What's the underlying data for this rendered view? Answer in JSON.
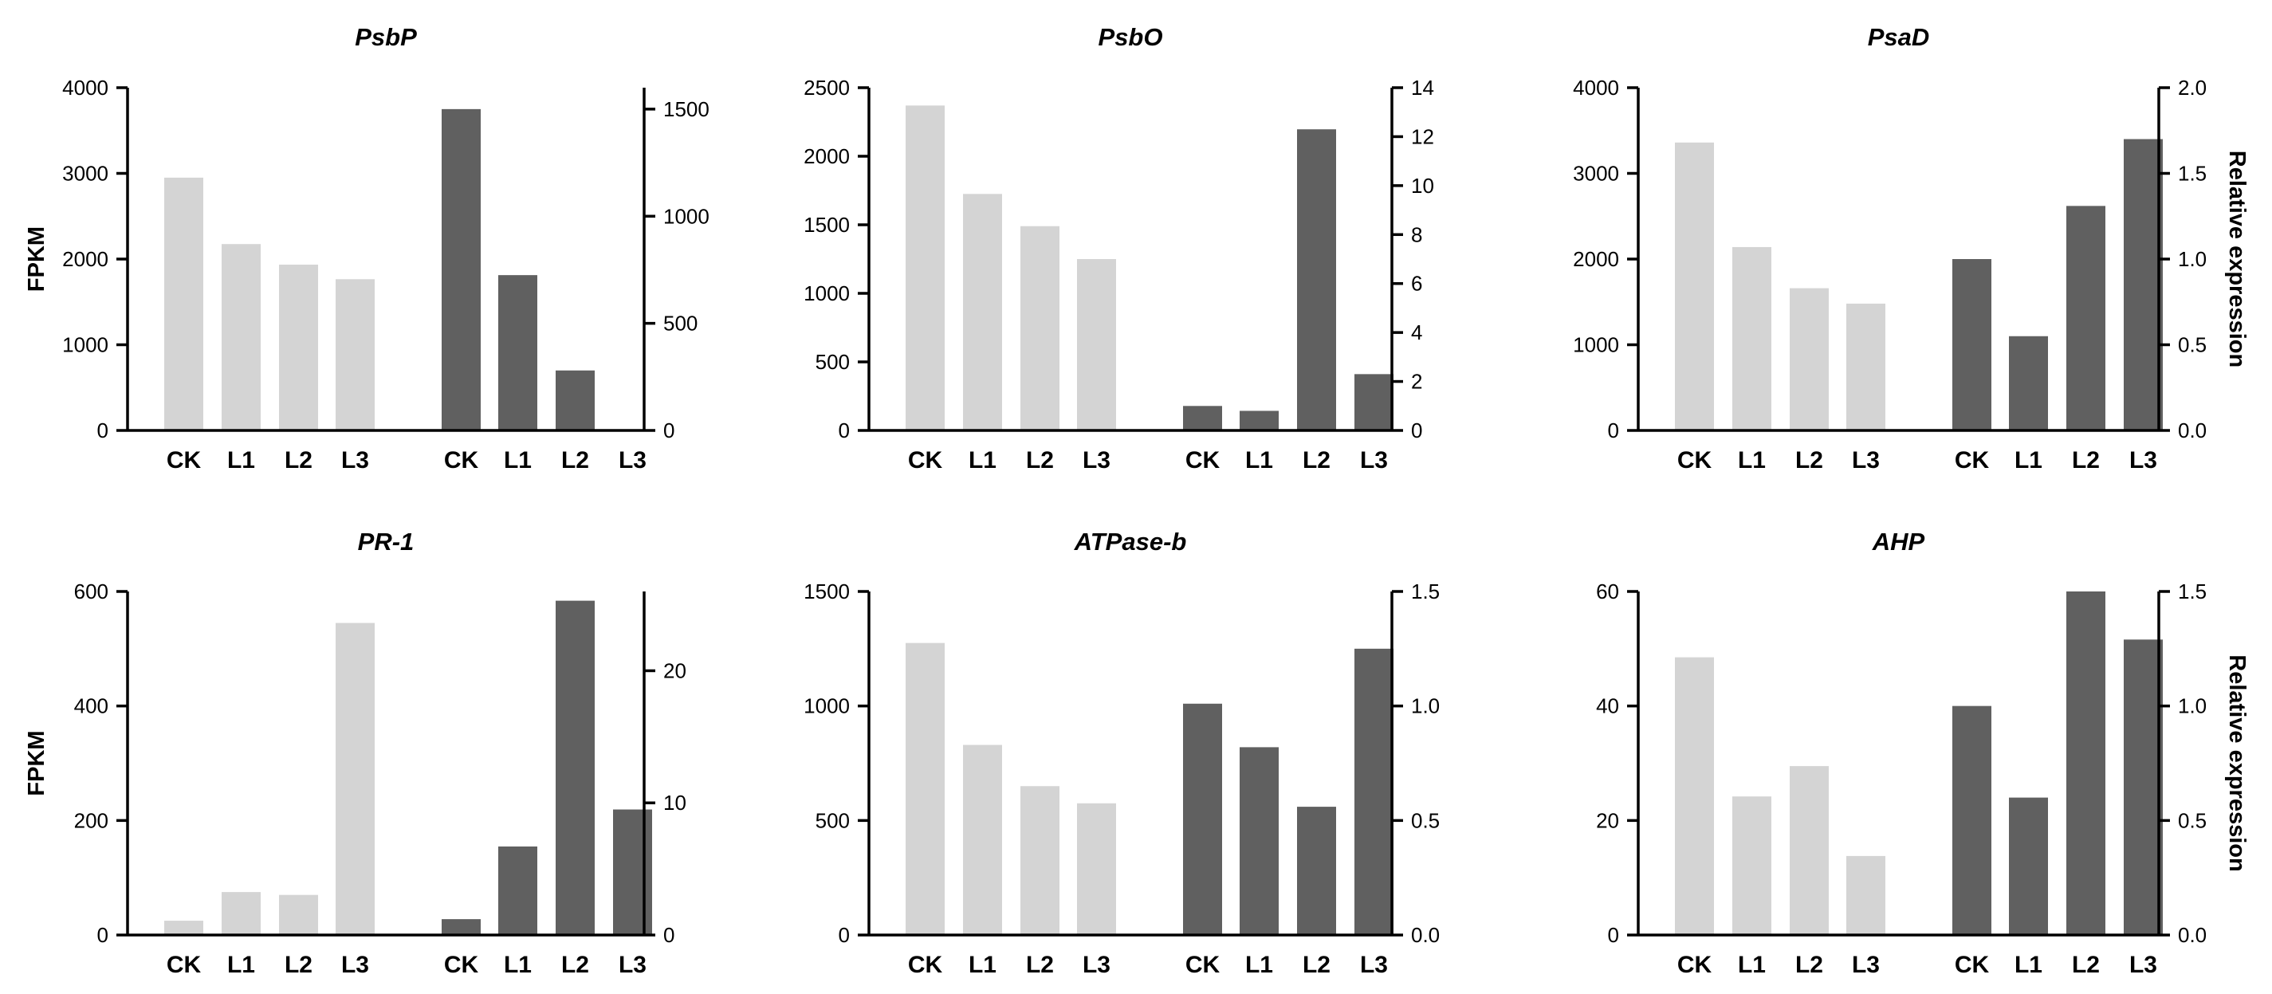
{
  "colors": {
    "fpkm_bar": "#d4d4d4",
    "rel_bar": "#606060",
    "axis": "#000000"
  },
  "chart_data": [
    {
      "type": "bar",
      "title": "PsbP",
      "categories": [
        "CK",
        "L1",
        "L2",
        "L3"
      ],
      "ylabel": "FPKM",
      "y2label": "",
      "ylim": [
        0,
        4000
      ],
      "yticks": [
        0,
        1000,
        2000,
        3000,
        4000
      ],
      "yticklabels": [
        "0",
        "1000",
        "2000",
        "3000",
        "4000"
      ],
      "y2lim": [
        0,
        1600
      ],
      "y2ticks": [
        0,
        500,
        1000,
        1500
      ],
      "y2ticklabels": [
        "0",
        "500",
        "1000",
        "1500"
      ],
      "series": [
        {
          "name": "FPKM",
          "axis": "left",
          "values": [
            2950,
            2175,
            1935,
            1765
          ]
        },
        {
          "name": "Relative expression",
          "axis": "right",
          "values": [
            1500,
            725,
            280,
            0
          ]
        }
      ]
    },
    {
      "type": "bar",
      "title": "PsbO",
      "categories": [
        "CK",
        "L1",
        "L2",
        "L3"
      ],
      "ylabel": "",
      "y2label": "",
      "ylim": [
        0,
        2500
      ],
      "yticks": [
        0,
        500,
        1000,
        1500,
        2000,
        2500
      ],
      "yticklabels": [
        "0",
        "500",
        "1000",
        "1500",
        "2000",
        "2500"
      ],
      "y2lim": [
        0,
        14
      ],
      "y2ticks": [
        0,
        2,
        4,
        6,
        8,
        10,
        12,
        14
      ],
      "y2ticklabels": [
        "0",
        "2",
        "4",
        "6",
        "8",
        "10",
        "12",
        "14"
      ],
      "series": [
        {
          "name": "FPKM",
          "axis": "left",
          "values": [
            2370,
            1725,
            1490,
            1250
          ]
        },
        {
          "name": "Relative expression",
          "axis": "right",
          "values": [
            1.0,
            0.8,
            12.3,
            2.3
          ]
        }
      ]
    },
    {
      "type": "bar",
      "title": "PsaD",
      "categories": [
        "CK",
        "L1",
        "L2",
        "L3"
      ],
      "ylabel": "",
      "y2label": "Relative expression",
      "ylim": [
        0,
        4000
      ],
      "yticks": [
        0,
        1000,
        2000,
        3000,
        4000
      ],
      "yticklabels": [
        "0",
        "1000",
        "2000",
        "3000",
        "4000"
      ],
      "y2lim": [
        0,
        2.0
      ],
      "y2ticks": [
        0,
        0.5,
        1.0,
        1.5,
        2.0
      ],
      "y2ticklabels": [
        "0.0",
        "0.5",
        "1.0",
        "1.5",
        "2.0"
      ],
      "series": [
        {
          "name": "FPKM",
          "axis": "left",
          "values": [
            3360,
            2140,
            1660,
            1480
          ]
        },
        {
          "name": "Relative expression",
          "axis": "right",
          "values": [
            1.0,
            0.55,
            1.31,
            1.7
          ]
        }
      ]
    },
    {
      "type": "bar",
      "title": "PR-1",
      "categories": [
        "CK",
        "L1",
        "L2",
        "L3"
      ],
      "ylabel": "FPKM",
      "y2label": "",
      "ylim": [
        0,
        600
      ],
      "yticks": [
        0,
        200,
        400,
        600
      ],
      "yticklabels": [
        "0",
        "200",
        "400",
        "600"
      ],
      "y2lim": [
        0,
        26
      ],
      "y2ticks": [
        0,
        10,
        20
      ],
      "y2ticklabels": [
        "0",
        "10",
        "20"
      ],
      "series": [
        {
          "name": "FPKM",
          "axis": "left",
          "values": [
            25,
            75,
            70,
            545
          ]
        },
        {
          "name": "Relative expression",
          "axis": "right",
          "values": [
            1.2,
            6.7,
            25.3,
            9.5
          ]
        }
      ]
    },
    {
      "type": "bar",
      "title": "ATPase-b",
      "categories": [
        "CK",
        "L1",
        "L2",
        "L3"
      ],
      "ylabel": "",
      "y2label": "",
      "ylim": [
        0,
        1500
      ],
      "yticks": [
        0,
        500,
        1000,
        1500
      ],
      "yticklabels": [
        "0",
        "500",
        "1000",
        "1500"
      ],
      "y2lim": [
        0,
        1.5
      ],
      "y2ticks": [
        0,
        0.5,
        1.0,
        1.5
      ],
      "y2ticklabels": [
        "0.0",
        "0.5",
        "1.0",
        "1.5"
      ],
      "series": [
        {
          "name": "FPKM",
          "axis": "left",
          "values": [
            1275,
            830,
            650,
            575
          ]
        },
        {
          "name": "Relative expression",
          "axis": "right",
          "values": [
            1.01,
            0.82,
            0.56,
            1.25
          ]
        }
      ]
    },
    {
      "type": "bar",
      "title": "AHP",
      "categories": [
        "CK",
        "L1",
        "L2",
        "L3"
      ],
      "ylabel": "",
      "y2label": "Relative expression",
      "ylim": [
        0,
        60
      ],
      "yticks": [
        0,
        20,
        40,
        60
      ],
      "yticklabels": [
        "0",
        "20",
        "40",
        "60"
      ],
      "y2lim": [
        0,
        1.5
      ],
      "y2ticks": [
        0,
        0.5,
        1.0,
        1.5
      ],
      "y2ticklabels": [
        "0.0",
        "0.5",
        "1.0",
        "1.5"
      ],
      "series": [
        {
          "name": "FPKM",
          "axis": "left",
          "values": [
            48.5,
            24.2,
            29.5,
            13.8
          ]
        },
        {
          "name": "Relative expression",
          "axis": "right",
          "values": [
            1.0,
            0.6,
            1.5,
            1.29
          ]
        }
      ]
    }
  ]
}
